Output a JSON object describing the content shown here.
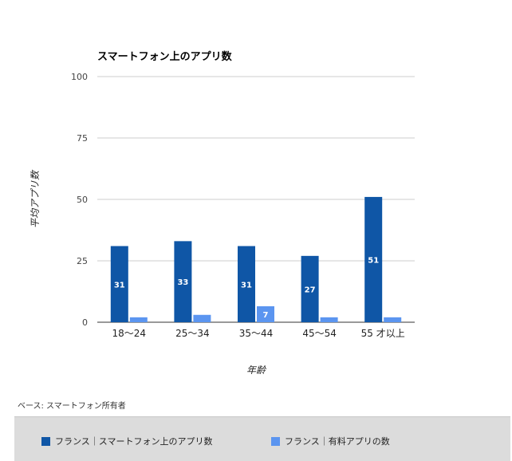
{
  "chart_data": {
    "type": "bar",
    "title": "スマートフォン上のアプリ数",
    "xlabel": "年齢",
    "ylabel": "平均アプリ数",
    "ylim": [
      0,
      100
    ],
    "yticks": [
      0,
      25,
      50,
      75,
      100
    ],
    "grid": true,
    "legend_position": "bottom",
    "categories": [
      "18〜24",
      "25〜34",
      "35〜44",
      "45〜54",
      "55 才以上"
    ],
    "series": [
      {
        "name": "フランス｜スマートフォン上のアプリ数",
        "color": "#0f56a6",
        "values": [
          31,
          33,
          31,
          27,
          51
        ],
        "labels": [
          "31",
          "33",
          "31",
          "27",
          "51"
        ]
      },
      {
        "name": "フランス｜有料アプリの数",
        "color": "#5b95f0",
        "values": [
          2,
          3,
          6.5,
          2,
          2
        ],
        "labels": [
          "",
          "",
          "7",
          "",
          ""
        ]
      }
    ]
  },
  "note": "ベース: スマートフォン所有者"
}
